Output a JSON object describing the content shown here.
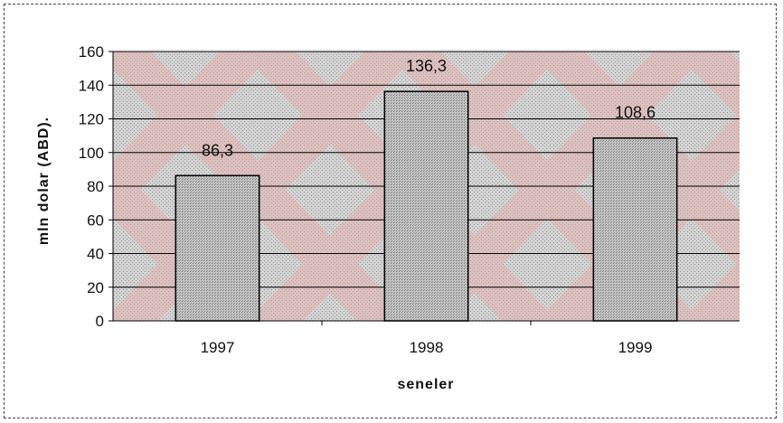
{
  "chart_data": {
    "type": "bar",
    "categories": [
      "1997",
      "1998",
      "1999"
    ],
    "values": [
      86.3,
      136.3,
      108.6
    ],
    "data_labels": [
      "86,3",
      "136,3",
      "108,6"
    ],
    "title": "",
    "xlabel": "seneler",
    "ylabel": "mln dolar (ABD).",
    "ylim": [
      0,
      160
    ],
    "yticks": [
      0,
      20,
      40,
      60,
      80,
      100,
      120,
      140,
      160
    ],
    "grid": true,
    "legend": "none",
    "colors": {
      "plot_background": "#d2d2d2",
      "bar_fill": "#bfbfbf",
      "bar_stroke": "#000000",
      "gridline": "#000000",
      "watermark": "#e9a9a9"
    }
  }
}
